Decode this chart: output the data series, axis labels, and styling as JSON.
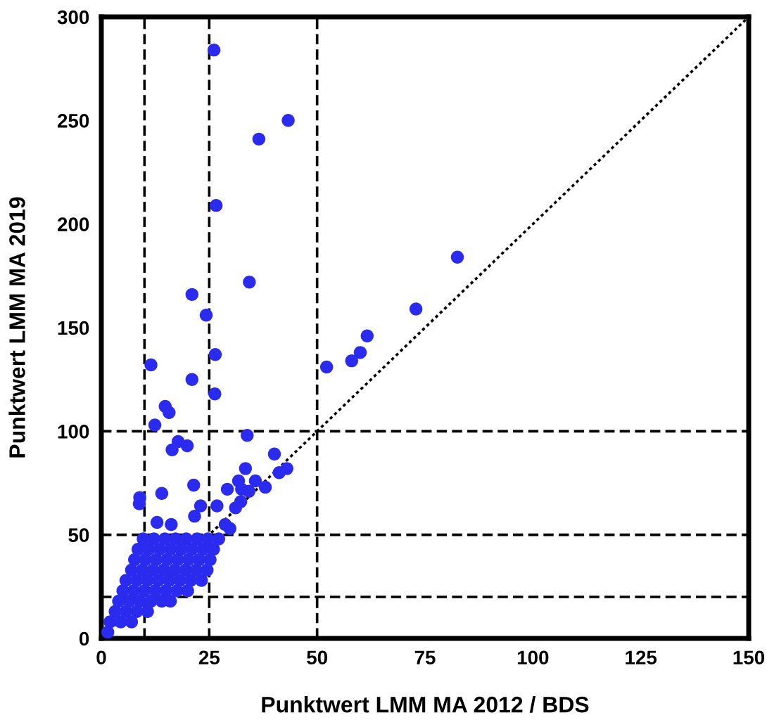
{
  "chart_data": {
    "type": "scatter",
    "xlabel": "Punktwert LMM MA 2012 / BDS",
    "ylabel": "Punktwert LMM MA 2019",
    "xlim": [
      0,
      150
    ],
    "ylim": [
      0,
      300
    ],
    "xticks": [
      0,
      25,
      50,
      75,
      100,
      125,
      150
    ],
    "yticks": [
      0,
      50,
      100,
      150,
      200,
      250,
      300
    ],
    "grid": false,
    "series": [
      {
        "color": "#2b2bef",
        "marker": "circle",
        "x": [
          1.5,
          2,
          4.5,
          7,
          3.2,
          5.7,
          8.2,
          10.7,
          4,
          6.5,
          9,
          11.5,
          14,
          16,
          5,
          7.5,
          10,
          12.5,
          15,
          17.5,
          20,
          5.7,
          8.2,
          10.7,
          13.2,
          15.7,
          18.2,
          20.7,
          23.2,
          7,
          9.5,
          12,
          14.5,
          17,
          19.5,
          22,
          24.5,
          7.7,
          10.2,
          12.7,
          15.2,
          17.7,
          20.2,
          22.7,
          25.2,
          8.5,
          11,
          13.5,
          16,
          18.5,
          21,
          23.5,
          26,
          9.7,
          12.2,
          14.7,
          17.2,
          19.7,
          22.2,
          24.7,
          27.2,
          26.1,
          43.3,
          36.5,
          26.6,
          34.3,
          21.0,
          24.3,
          72.9,
          82.5,
          11.5,
          26.4,
          21.0,
          26.3,
          61.6,
          60.0,
          58.0,
          52.2,
          14.8,
          15.7,
          12.4,
          33.8,
          16.4,
          17.8,
          19.9,
          40.1,
          43.0,
          41.2,
          33.4,
          35.7,
          38.0,
          31.8,
          32.5,
          34.2,
          29.2,
          21.4,
          14.0,
          8.9,
          8.8,
          23.0,
          32.3,
          31.1,
          26.8,
          21.6,
          12.9,
          16.2,
          28.7,
          29.8
        ],
        "values": [
          3,
          8,
          8,
          8,
          13,
          13,
          13,
          13,
          18,
          18,
          18,
          18,
          18,
          18,
          23,
          23,
          23,
          23,
          23,
          23,
          23,
          28,
          28,
          28,
          28,
          28,
          28,
          28,
          28,
          33,
          33,
          33,
          33,
          33,
          33,
          33,
          33,
          38,
          38,
          38,
          38,
          38,
          38,
          38,
          38,
          43,
          43,
          43,
          43,
          43,
          43,
          43,
          43,
          48,
          48,
          48,
          48,
          48,
          48,
          48,
          48,
          284,
          250,
          241,
          209,
          172,
          166,
          156,
          159,
          184,
          132,
          137,
          125,
          118,
          146,
          138,
          134,
          131,
          112,
          109,
          103,
          98,
          91,
          95,
          93,
          89,
          82,
          80,
          82,
          76,
          73,
          76,
          72,
          71,
          72,
          74,
          70,
          68,
          65,
          64,
          66,
          63,
          64,
          59,
          56,
          55,
          55,
          53
        ]
      },
      {
        "type": "line",
        "color": "#000000",
        "line_style": "dotted",
        "x": [
          0,
          150
        ],
        "values": [
          0,
          300
        ]
      }
    ],
    "ref_lines": [
      {
        "axis": "x",
        "value": 10,
        "color": "#000000",
        "line_style": "dashed"
      },
      {
        "axis": "x",
        "value": 25,
        "color": "#000000",
        "line_style": "dashed"
      },
      {
        "axis": "x",
        "value": 50,
        "color": "#000000",
        "line_style": "dashed"
      },
      {
        "axis": "y",
        "value": 20,
        "color": "#000000",
        "line_style": "dashed"
      },
      {
        "axis": "y",
        "value": 50,
        "color": "#000000",
        "line_style": "dashed"
      },
      {
        "axis": "y",
        "value": 100,
        "color": "#000000",
        "line_style": "dashed"
      }
    ]
  }
}
